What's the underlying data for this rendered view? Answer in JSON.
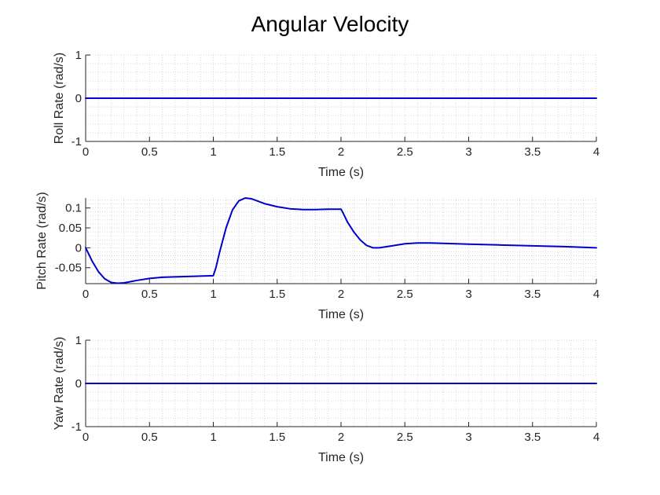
{
  "figure": {
    "title": "Angular Velocity"
  },
  "colors": {
    "line": "#0000cd",
    "axis": "#262626",
    "grid": "#c8c8c8",
    "background": "#ffffff"
  },
  "chart_data": [
    {
      "type": "line",
      "title": "",
      "xlabel": "Time (s)",
      "ylabel": "Roll Rate (rad/s)",
      "xlim": [
        0,
        4
      ],
      "ylim": [
        -1,
        1
      ],
      "xticks": [
        0,
        0.5,
        1,
        1.5,
        2,
        2.5,
        3,
        3.5,
        4
      ],
      "xtick_labels": [
        "0",
        "0.5",
        "1",
        "1.5",
        "2",
        "2.5",
        "3",
        "3.5",
        "4"
      ],
      "yticks": [
        -1,
        0,
        1
      ],
      "ytick_labels": [
        "-1",
        "0",
        "1"
      ],
      "grid": "minor-dotted",
      "series": [
        {
          "x": [
            0,
            4
          ],
          "y": [
            0,
            0
          ]
        }
      ]
    },
    {
      "type": "line",
      "title": "",
      "xlabel": "Time (s)",
      "ylabel": "Pitch Rate (rad/s)",
      "xlim": [
        0,
        4
      ],
      "ylim": [
        -0.09,
        0.125
      ],
      "xticks": [
        0,
        0.5,
        1,
        1.5,
        2,
        2.5,
        3,
        3.5,
        4
      ],
      "xtick_labels": [
        "0",
        "0.5",
        "1",
        "1.5",
        "2",
        "2.5",
        "3",
        "3.5",
        "4"
      ],
      "yticks": [
        -0.05,
        0,
        0.05,
        0.1
      ],
      "ytick_labels": [
        "-0.05",
        "0",
        "0.05",
        "0.1"
      ],
      "grid": "minor-dotted",
      "series": [
        {
          "x": [
            0,
            0.05,
            0.1,
            0.15,
            0.2,
            0.25,
            0.3,
            0.35,
            0.4,
            0.5,
            0.6,
            0.7,
            0.8,
            0.9,
            1.0,
            1.02,
            1.05,
            1.1,
            1.15,
            1.2,
            1.25,
            1.3,
            1.35,
            1.4,
            1.5,
            1.6,
            1.7,
            1.8,
            1.9,
            2.0,
            2.02,
            2.05,
            2.1,
            2.15,
            2.2,
            2.25,
            2.3,
            2.4,
            2.5,
            2.6,
            2.7,
            2.8,
            3.0,
            3.25,
            3.5,
            3.75,
            4.0
          ],
          "y": [
            0.0,
            -0.033,
            -0.06,
            -0.078,
            -0.087,
            -0.089,
            -0.088,
            -0.085,
            -0.082,
            -0.077,
            -0.074,
            -0.073,
            -0.072,
            -0.071,
            -0.07,
            -0.05,
            -0.01,
            0.05,
            0.095,
            0.118,
            0.125,
            0.123,
            0.117,
            0.111,
            0.103,
            0.098,
            0.096,
            0.096,
            0.097,
            0.097,
            0.085,
            0.065,
            0.04,
            0.02,
            0.006,
            0.0,
            0.0,
            0.005,
            0.01,
            0.012,
            0.012,
            0.011,
            0.009,
            0.007,
            0.005,
            0.003,
            0.0
          ]
        }
      ]
    },
    {
      "type": "line",
      "title": "",
      "xlabel": "Time (s)",
      "ylabel": "Yaw Rate (rad/s)",
      "xlim": [
        0,
        4
      ],
      "ylim": [
        -1,
        1
      ],
      "xticks": [
        0,
        0.5,
        1,
        1.5,
        2,
        2.5,
        3,
        3.5,
        4
      ],
      "xtick_labels": [
        "0",
        "0.5",
        "1",
        "1.5",
        "2",
        "2.5",
        "3",
        "3.5",
        "4"
      ],
      "yticks": [
        -1,
        0,
        1
      ],
      "ytick_labels": [
        "-1",
        "0",
        "1"
      ],
      "grid": "minor-dotted",
      "series": [
        {
          "x": [
            0,
            4
          ],
          "y": [
            0,
            0
          ]
        }
      ]
    }
  ]
}
